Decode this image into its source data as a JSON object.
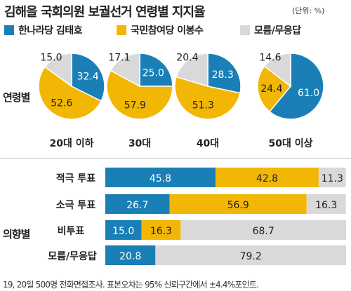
{
  "title": "김해을 국회의원 보궐선거 연령별 지지율",
  "unit": "(단위: %)",
  "legend": [
    {
      "name": "한나라당 김태호",
      "color": "#1a7fb6"
    },
    {
      "name": "국민참여당 이봉수",
      "color": "#f2b705"
    },
    {
      "name": "모름/무응답",
      "color": "#d9d9d9"
    }
  ],
  "section_labels": {
    "age": "연령별",
    "intention": "의향별"
  },
  "footnote": "19, 20일 500명 전화면접조사. 표본오차는 95% 신뢰구간에서 ±4.4%포인트.",
  "chart_data": [
    {
      "type": "pie",
      "title": "연령별",
      "series": [
        "한나라당 김태호",
        "국민참여당 이봉수",
        "모름/무응답"
      ],
      "categories": [
        "20대 이하",
        "30대",
        "40대",
        "50대 이상"
      ],
      "values": [
        [
          32.4,
          52.6,
          15.0
        ],
        [
          25.0,
          57.9,
          17.1
        ],
        [
          28.3,
          51.3,
          20.4
        ],
        [
          61.0,
          24.4,
          14.6
        ]
      ],
      "labels": [
        [
          "32.4",
          "52.6",
          "15.0"
        ],
        [
          "25.0",
          "57.9",
          "17.1"
        ],
        [
          "28.3",
          "51.3",
          "20.4"
        ],
        [
          "61.0",
          "24.4",
          "14.6"
        ]
      ]
    },
    {
      "type": "bar",
      "stacked": true,
      "orientation": "horizontal",
      "title": "의향별",
      "categories": [
        "적극 투표",
        "소극 투표",
        "비투표",
        "모름/무응답"
      ],
      "series": [
        {
          "name": "한나라당 김태호",
          "values": [
            45.8,
            26.7,
            15.0,
            20.8
          ],
          "labels": [
            "45.8",
            "26.7",
            "15.0",
            "20.8"
          ]
        },
        {
          "name": "국민참여당 이봉수",
          "values": [
            42.8,
            56.9,
            16.3,
            0
          ],
          "labels": [
            "42.8",
            "56.9",
            "16.3",
            ""
          ]
        },
        {
          "name": "모름/무응답",
          "values": [
            11.3,
            16.3,
            68.7,
            79.2
          ],
          "labels": [
            "11.3",
            "16.3",
            "68.7",
            "79.2"
          ]
        }
      ],
      "xlim": [
        0,
        100
      ]
    }
  ]
}
